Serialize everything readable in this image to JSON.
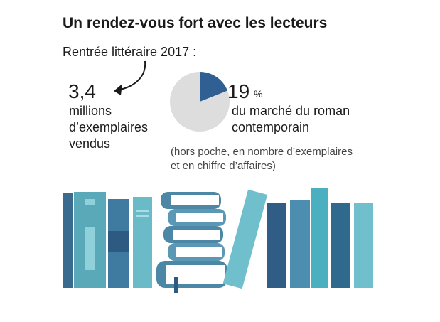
{
  "title": "Un rendez-vous fort avec les lecteurs",
  "subtitle": "Rentrée littéraire 2017 :",
  "stat": {
    "value": "3,4",
    "label_lines": [
      "millions",
      "d’exemplaires",
      "vendus"
    ]
  },
  "chart_data": {
    "type": "pie",
    "values": [
      19
    ],
    "value_labels": [
      "19"
    ],
    "unit": "%",
    "color": "#2f5f93",
    "rest_color": "#dddddd",
    "caption_lines": [
      "du marché du roman",
      "contemporain"
    ],
    "note_lines": [
      "(hors poche, en nombre d’exemplaires",
      "et en chiffre d’affaires)"
    ]
  }
}
